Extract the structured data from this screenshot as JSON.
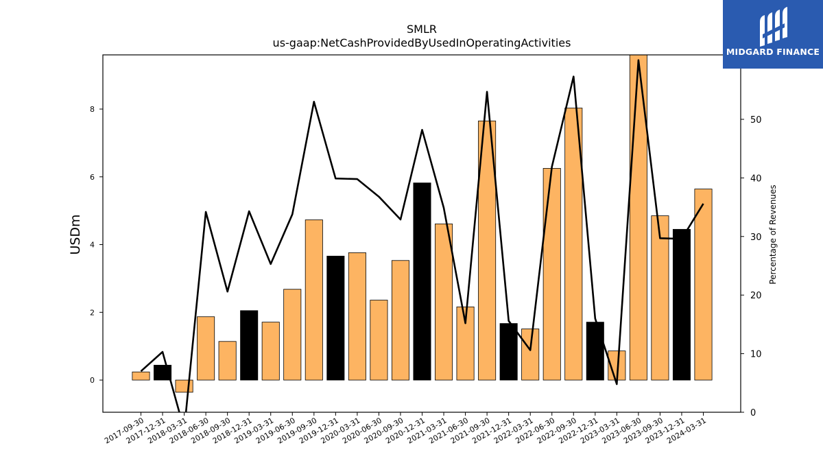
{
  "chart_data": {
    "type": "bar",
    "title": "SMLR",
    "subtitle": "us-gaap:NetCashProvidedByUsedInOperatingActivities",
    "ylabel": "USDm",
    "y2label": "Percentage of Revenues",
    "ylim": [
      -0.95,
      9.6
    ],
    "y2lim": [
      0,
      61
    ],
    "yticks": [
      0,
      2,
      4,
      6,
      8
    ],
    "y2ticks": [
      0,
      10,
      20,
      30,
      40,
      50,
      60
    ],
    "grid": false,
    "categories": [
      "2017-09-30",
      "2017-12-31",
      "2018-03-31",
      "2018-06-30",
      "2018-09-30",
      "2018-12-31",
      "2019-03-31",
      "2019-06-30",
      "2019-09-30",
      "2019-12-31",
      "2020-03-31",
      "2020-06-30",
      "2020-09-30",
      "2020-12-31",
      "2021-03-31",
      "2021-06-30",
      "2021-09-30",
      "2021-12-31",
      "2022-03-31",
      "2022-06-30",
      "2022-09-30",
      "2022-12-31",
      "2023-03-31",
      "2023-06-30",
      "2023-09-30",
      "2023-12-31",
      "2024-03-31"
    ],
    "series": [
      {
        "type": "bar",
        "values": [
          0.24,
          0.44,
          -0.36,
          1.87,
          1.14,
          2.05,
          1.71,
          2.68,
          4.73,
          3.66,
          3.76,
          2.36,
          3.53,
          5.82,
          4.61,
          2.16,
          7.65,
          1.67,
          1.51,
          6.25,
          8.03,
          1.71,
          0.86,
          9.65,
          4.85,
          4.45,
          5.64
        ],
        "highlight_q4": true
      },
      {
        "type": "line",
        "axis": "right",
        "values": [
          7.0,
          10.3,
          -3.0,
          34.2,
          20.6,
          34.3,
          25.3,
          33.8,
          53.0,
          39.9,
          39.8,
          36.8,
          32.9,
          48.2,
          34.9,
          15.2,
          54.7,
          15.6,
          10.6,
          41.9,
          57.3,
          16.0,
          4.8,
          60.1,
          29.7,
          29.6,
          35.6
        ]
      }
    ]
  },
  "colors": {
    "bar_default": "#fdb462",
    "bar_highlight": "#000000",
    "line": "#000000",
    "logo_bg": "#2a5bb0",
    "logo_fg": "#ffffff"
  },
  "logo": {
    "text": "MIDGARD FINANCE",
    "icon": "midgard-logo-icon"
  }
}
